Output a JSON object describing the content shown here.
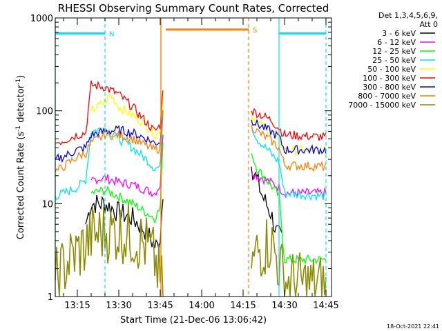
{
  "chart_data": {
    "type": "line",
    "title": "RHESSI Observing Summary Count Rates, Corrected",
    "xlabel": "Start Time (21-Dec-06 13:06:42)",
    "ylabel": "Corrected Count Rate (s",
    "ylabel_sup": "-1",
    "ylabel_mid": " detector",
    "ylabel_sup2": "-1",
    "ylabel_end": ")",
    "yscale": "log",
    "ylim": [
      1,
      1000
    ],
    "y_ticks": [
      1,
      10,
      100,
      1000
    ],
    "y_tick_labels": [
      "1",
      "10",
      "100",
      "1000"
    ],
    "xlim": [
      "13:07",
      "14:47"
    ],
    "x_ticks": [
      "13:15",
      "13:30",
      "13:45",
      "14:00",
      "14:15",
      "14:30",
      "14:45"
    ],
    "legend_header": [
      "Det 1,3,4,5,6,9,",
      "Att 0"
    ],
    "legend_placement": "right",
    "timestamp": "18-Oct-2021 22:41",
    "gaps": [
      [
        "13:46",
        "14:18"
      ]
    ],
    "flags": [
      {
        "label": "N",
        "color": "#00e5ee",
        "start": "13:07",
        "end": "13:25",
        "y": 680,
        "dashed_line": "13:25"
      },
      {
        "label": "S",
        "color": "#ff7f00",
        "start": "13:47",
        "end": "14:17",
        "y": 750,
        "dashed_line": "14:17"
      },
      {
        "label": "",
        "color": "#00e5ee",
        "start": "14:28",
        "end": "14:45",
        "y": 680,
        "dashed_line": "14:45"
      }
    ],
    "series": [
      {
        "name": "3 - 6 keV",
        "color": "#000000",
        "x": [
          "13:07",
          "13:15",
          "13:18",
          "13:20",
          "13:25",
          "13:30",
          "13:35",
          "13:40",
          "13:43",
          "13:44",
          "13:45",
          "13:46",
          "14:18",
          "14:20",
          "14:22",
          "14:25",
          "14:27",
          "14:29"
        ],
        "y": [
          null,
          null,
          6,
          10,
          10,
          8,
          7,
          5,
          3.5,
          3.5,
          4.5,
          14,
          25,
          18,
          12,
          8,
          5,
          4
        ]
      },
      {
        "name": "6 - 12 keV",
        "color": "#ff00ff",
        "x": [
          "13:07",
          "13:18",
          "13:20",
          "13:25",
          "13:30",
          "13:35",
          "13:40",
          "13:43",
          "13:45",
          "13:46",
          "14:18",
          "14:20",
          "14:25",
          "14:28",
          "14:30",
          "14:45"
        ],
        "y": [
          null,
          null,
          18,
          19,
          17,
          16,
          14,
          13,
          16,
          60,
          22,
          20,
          17,
          15,
          13,
          13
        ]
      },
      {
        "name": "12 - 25 keV",
        "color": "#00ff00",
        "x": [
          "13:07",
          "13:18",
          "13:20",
          "13:25",
          "13:30",
          "13:35",
          "13:40",
          "13:43",
          "13:45",
          "13:46",
          "14:18",
          "14:20",
          "14:25",
          "14:28",
          "14:30",
          "14:45"
        ],
        "y": [
          null,
          null,
          13,
          14,
          12,
          10,
          8,
          7,
          9,
          50,
          35,
          24,
          16,
          12,
          2.5,
          2.5
        ]
      },
      {
        "name": "25 - 50 keV",
        "color": "#00e5ee",
        "x": [
          "13:07",
          "13:10",
          "13:15",
          "13:18",
          "13:20",
          "13:25",
          "13:30",
          "13:35",
          "13:40",
          "13:43",
          "13:45",
          "13:46",
          "14:18",
          "14:20",
          "14:25",
          "14:28",
          "14:30",
          "14:45"
        ],
        "y": [
          12,
          13,
          15,
          18,
          60,
          65,
          50,
          40,
          30,
          24,
          25,
          100,
          70,
          50,
          35,
          28,
          13,
          12
        ]
      },
      {
        "name": "50 - 100 keV",
        "color": "#ffff00",
        "x": [
          "13:07",
          "13:18",
          "13:20",
          "13:25",
          "13:27",
          "13:30",
          "13:35",
          "13:40",
          "13:43",
          "13:45",
          "13:46",
          "14:18",
          "14:20",
          "14:25",
          "14:28",
          "14:30",
          "14:45"
        ],
        "y": [
          null,
          null,
          100,
          125,
          150,
          110,
          90,
          70,
          55,
          60,
          150,
          90,
          75,
          60,
          50,
          38,
          37
        ]
      },
      {
        "name": "100 - 300 keV",
        "color": "#ff0000",
        "x": [
          "13:07",
          "13:10",
          "13:15",
          "13:18",
          "13:20",
          "13:25",
          "13:30",
          "13:35",
          "13:40",
          "13:43",
          "13:45",
          "13:46",
          "14:18",
          "14:20",
          "14:25",
          "14:28",
          "14:30",
          "14:45"
        ],
        "y": [
          45,
          48,
          55,
          58,
          190,
          180,
          150,
          110,
          75,
          60,
          70,
          180,
          100,
          95,
          80,
          65,
          55,
          52
        ]
      },
      {
        "name": "300 - 800 keV",
        "color": "#0000ff",
        "x": [
          "13:07",
          "13:10",
          "13:15",
          "13:18",
          "13:20",
          "13:25",
          "13:30",
          "13:35",
          "13:40",
          "13:43",
          "13:45",
          "13:46",
          "14:18",
          "14:20",
          "14:25",
          "14:28",
          "14:30",
          "14:45"
        ],
        "y": [
          30,
          32,
          38,
          40,
          55,
          60,
          62,
          58,
          50,
          45,
          47,
          110,
          80,
          72,
          60,
          52,
          38,
          38
        ]
      },
      {
        "name": "800 - 7000 keV",
        "color": "#ff7f00",
        "x": [
          "13:07",
          "13:10",
          "13:15",
          "13:18",
          "13:20",
          "13:25",
          "13:30",
          "13:35",
          "13:40",
          "13:43",
          "13:45",
          "13:46",
          "14:18",
          "14:20",
          "14:25",
          "14:28",
          "14:30",
          "14:45"
        ],
        "y": [
          22,
          25,
          32,
          35,
          45,
          55,
          55,
          50,
          42,
          38,
          40,
          95,
          70,
          60,
          48,
          40,
          26,
          25
        ]
      },
      {
        "name": "7000 - 15000 keV",
        "color": "#8b8b00",
        "x": [
          "13:07",
          "13:12",
          "13:15",
          "13:18",
          "13:20",
          "13:25",
          "13:30",
          "13:35",
          "13:40",
          "13:43",
          "13:45",
          "13:46",
          "14:18",
          "14:20",
          "14:25",
          "14:30",
          "14:35",
          "14:45"
        ],
        "y": [
          1.5,
          2.5,
          3,
          3.5,
          4.5,
          5,
          5,
          4.5,
          3.5,
          2.5,
          1.5,
          1.2,
          2,
          3,
          4,
          1.5,
          1.4,
          1.3
        ]
      }
    ]
  }
}
